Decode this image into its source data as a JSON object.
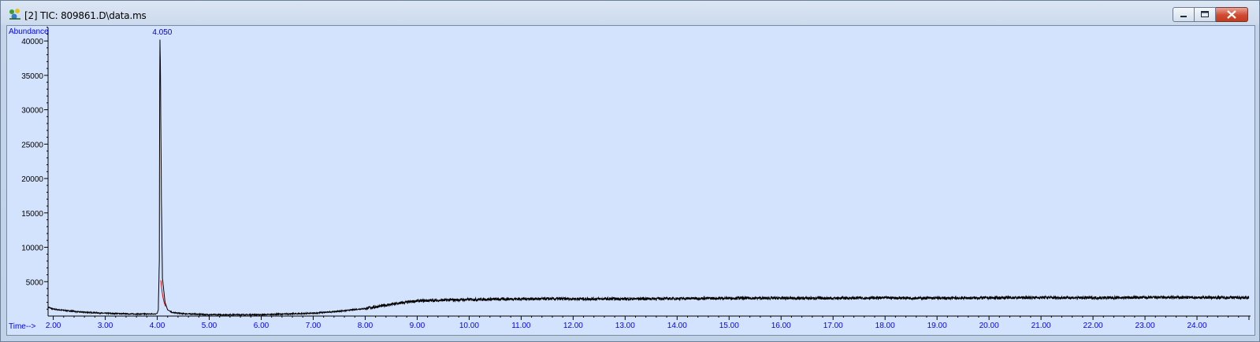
{
  "window": {
    "title": "[2] TIC: 809861.D\\data.ms",
    "icon": "chromatogram-app-icon",
    "buttons": {
      "minimize": "minimize-icon",
      "maximize": "maximize-icon",
      "close": "close-icon"
    }
  },
  "colors": {
    "plot_background": "#d4e3fd",
    "trace": "#000000",
    "axis_text": "#0000ff",
    "peak_label": "#0000c8",
    "peak_fill_marker": "#e00000"
  },
  "chart_data": {
    "type": "line",
    "title": "",
    "ylabel": "Abundance",
    "xlabel": "Time-->",
    "xlim": [
      1.9,
      25.0
    ],
    "ylim": [
      0,
      41500
    ],
    "x_ticks": [
      "2.00",
      "3.00",
      "4.00",
      "5.00",
      "6.00",
      "7.00",
      "8.00",
      "9.00",
      "10.00",
      "11.00",
      "12.00",
      "13.00",
      "14.00",
      "15.00",
      "16.00",
      "17.00",
      "18.00",
      "19.00",
      "20.00",
      "21.00",
      "22.00",
      "23.00",
      "24.00"
    ],
    "y_ticks": [
      "5000",
      "10000",
      "15000",
      "20000",
      "25000",
      "30000",
      "35000",
      "40000"
    ],
    "peak_labels": [
      {
        "rt": 4.05,
        "label": "4.050"
      }
    ],
    "series": [
      {
        "x": [
          1.9,
          2.0,
          2.5,
          3.0,
          3.5,
          3.95,
          4.0,
          4.02,
          4.04,
          4.05,
          4.06,
          4.08,
          4.1,
          4.15,
          4.2,
          4.3,
          4.5,
          5.0,
          6.0,
          7.0,
          7.5,
          8.0,
          8.5,
          9.0,
          9.5,
          10.0,
          11.0,
          12.0,
          13.0,
          14.0,
          15.0,
          16.0,
          17.0,
          18.0,
          19.0,
          20.0,
          21.0,
          22.0,
          23.0,
          24.0,
          25.0
        ],
        "y": [
          1300,
          1000,
          600,
          400,
          300,
          300,
          400,
          900,
          8000,
          41000,
          37000,
          17000,
          5500,
          2000,
          900,
          500,
          350,
          200,
          200,
          400,
          700,
          1100,
          1700,
          2200,
          2300,
          2400,
          2500,
          2500,
          2500,
          2550,
          2600,
          2600,
          2600,
          2650,
          2600,
          2650,
          2700,
          2650,
          2700,
          2700,
          2700
        ]
      }
    ]
  }
}
